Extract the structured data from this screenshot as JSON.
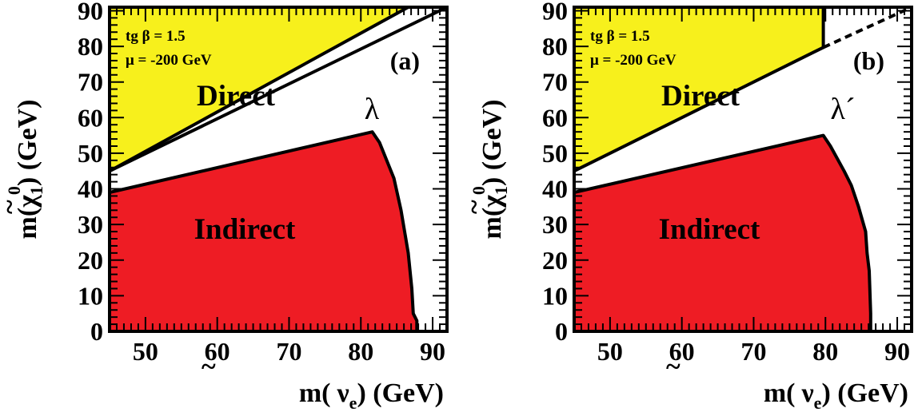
{
  "chart_data": [
    {
      "type": "area",
      "panel_label": "(a)",
      "coupling_label": "λ",
      "params": {
        "line1": "tg β = 1.5",
        "line2": "μ = -200 GeV"
      },
      "xlabel_parts": {
        "pre": "m(",
        "sym": "ν",
        "tilde": "~",
        "sub": "e",
        "post": ") (GeV)"
      },
      "ylabel_parts": {
        "pre": "m(",
        "sym": "χ",
        "tilde": "~",
        "sup": "0",
        "sub": "1",
        "post": ") (GeV)"
      },
      "xlim": [
        45,
        92
      ],
      "ylim": [
        0,
        91
      ],
      "x_ticks": [
        50,
        60,
        70,
        80,
        90
      ],
      "y_ticks": [
        0,
        10,
        20,
        30,
        40,
        50,
        60,
        70,
        80,
        90
      ],
      "regions": [
        {
          "name": "Direct",
          "color": "#f7f01c",
          "points": [
            [
              45,
              45
            ],
            [
              86.6,
              91
            ],
            [
              45,
              91
            ]
          ],
          "boundary": [
            [
              45,
              45
            ],
            [
              86.6,
              91
            ]
          ]
        },
        {
          "name": "Indirect",
          "color": "#ee1c24",
          "points": [
            [
              45,
              0
            ],
            [
              45,
              39
            ],
            [
              81.6,
              56
            ],
            [
              82.6,
              53
            ],
            [
              84.6,
              43
            ],
            [
              85.6,
              34
            ],
            [
              86.6,
              22
            ],
            [
              87.1,
              12
            ],
            [
              87.3,
              5
            ],
            [
              87.8,
              3
            ],
            [
              87.8,
              0
            ]
          ],
          "boundary": [
            [
              45,
              39
            ],
            [
              81.6,
              56
            ],
            [
              82.6,
              53
            ],
            [
              84.6,
              43
            ],
            [
              85.6,
              34
            ],
            [
              86.6,
              22
            ],
            [
              87.1,
              12
            ],
            [
              87.3,
              5
            ],
            [
              87.8,
              3
            ],
            [
              87.8,
              0
            ]
          ]
        }
      ],
      "diagonal": {
        "points": [
          [
            45,
            45
          ],
          [
            92,
            92
          ]
        ],
        "style": "solid"
      }
    },
    {
      "type": "area",
      "panel_label": "(b)",
      "coupling_label": "λ´",
      "params": {
        "line1": "tg β = 1.5",
        "line2": "μ = -200 GeV"
      },
      "xlabel_parts": {
        "pre": "m(",
        "sym": "ν",
        "tilde": "~",
        "sub": "e",
        "post": ") (GeV)"
      },
      "ylabel_parts": {
        "pre": "m(",
        "sym": "χ",
        "tilde": "~",
        "sup": "0",
        "sub": "1",
        "post": ") (GeV)"
      },
      "xlim": [
        45,
        92
      ],
      "ylim": [
        0,
        91
      ],
      "x_ticks": [
        50,
        60,
        70,
        80,
        90
      ],
      "y_ticks": [
        0,
        10,
        20,
        30,
        40,
        50,
        60,
        70,
        80,
        90
      ],
      "regions": [
        {
          "name": "Direct",
          "color": "#f7f01c",
          "points": [
            [
              45,
              45
            ],
            [
              79.7,
              79.7
            ],
            [
              79.7,
              91
            ],
            [
              45,
              91
            ]
          ],
          "boundary": [
            [
              45,
              45
            ],
            [
              79.7,
              79.7
            ],
            [
              79.7,
              91
            ]
          ]
        },
        {
          "name": "Indirect",
          "color": "#ee1c24",
          "points": [
            [
              45,
              0
            ],
            [
              45,
              39
            ],
            [
              79.7,
              55
            ],
            [
              80.7,
              52
            ],
            [
              82.6,
              45
            ],
            [
              83.6,
              41
            ],
            [
              84.6,
              35
            ],
            [
              85.6,
              28
            ],
            [
              85.8,
              22
            ],
            [
              86.1,
              17
            ],
            [
              86.3,
              5
            ],
            [
              86.3,
              0
            ]
          ],
          "boundary": [
            [
              45,
              39
            ],
            [
              79.7,
              55
            ],
            [
              80.7,
              52
            ],
            [
              82.6,
              45
            ],
            [
              83.6,
              41
            ],
            [
              84.6,
              35
            ],
            [
              85.6,
              28
            ],
            [
              85.8,
              22
            ],
            [
              86.1,
              17
            ],
            [
              86.3,
              5
            ],
            [
              86.3,
              0
            ]
          ]
        }
      ],
      "diagonal": {
        "points": [
          [
            79.7,
            79.7
          ],
          [
            92,
            92
          ]
        ],
        "style": "dashed"
      }
    }
  ]
}
